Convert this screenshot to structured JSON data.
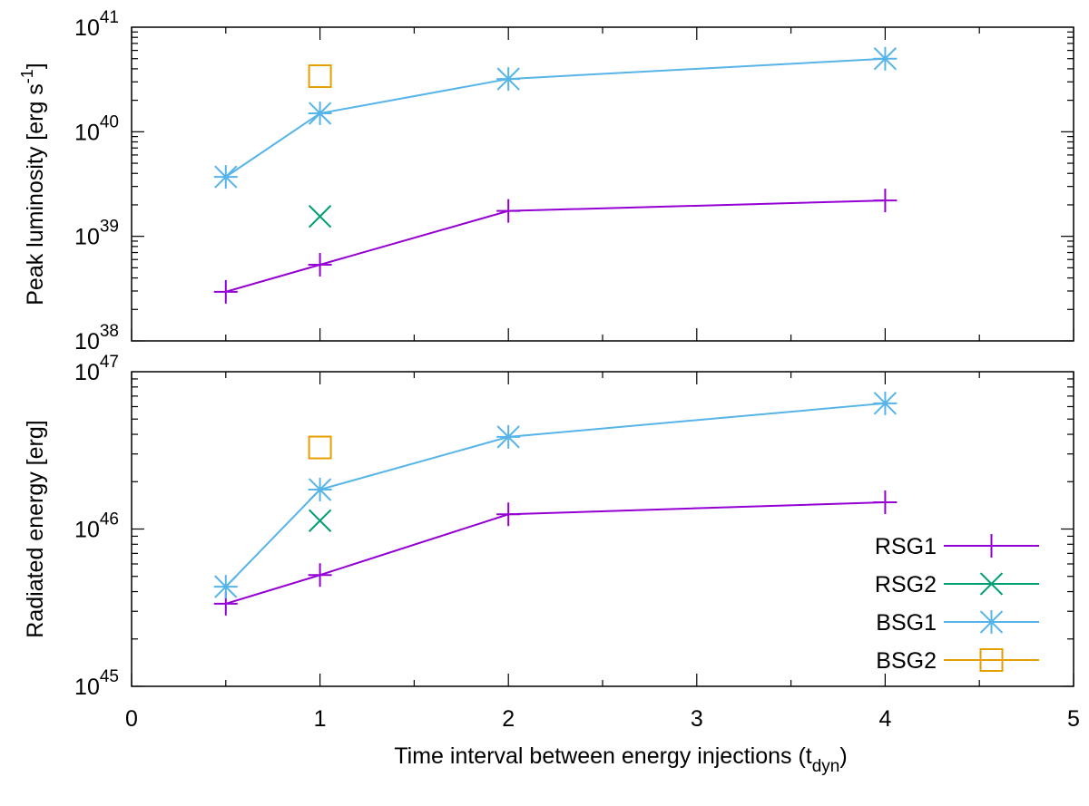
{
  "chart_data": [
    {
      "type": "line",
      "panel": "top",
      "ylabel": "Peak luminosity [erg s-1]",
      "ylabel_parts": [
        "Peak luminosity [erg s",
        "-1",
        "]"
      ],
      "yscale": "log",
      "ylim": [
        1e+38,
        1e+41
      ],
      "xlim": [
        0,
        5
      ],
      "yticks": [
        {
          "base": "10",
          "exp": "38",
          "value": 1e+38
        },
        {
          "base": "10",
          "exp": "39",
          "value": 1e+39
        },
        {
          "base": "10",
          "exp": "40",
          "value": 1e+40
        },
        {
          "base": "10",
          "exp": "41",
          "value": 1e+41
        }
      ],
      "series": [
        {
          "name": "RSG1",
          "marker": "plus",
          "color": "#9400d3",
          "connect": true,
          "points": [
            [
              0.5,
              2.95e+38
            ],
            [
              1,
              5.35e+38
            ],
            [
              2,
              1.75e+39
            ],
            [
              4,
              2.2e+39
            ]
          ]
        },
        {
          "name": "RSG2",
          "marker": "cross",
          "color": "#009e73",
          "connect": false,
          "points": [
            [
              1,
              1.55e+39
            ]
          ]
        },
        {
          "name": "BSG1",
          "marker": "star",
          "color": "#56b4e9",
          "connect": true,
          "points": [
            [
              0.5,
              3.7e+39
            ],
            [
              1,
              1.5e+40
            ],
            [
              2,
              3.2e+40
            ],
            [
              4,
              5e+40
            ]
          ]
        },
        {
          "name": "BSG2",
          "marker": "square",
          "color": "#e69f00",
          "connect": false,
          "points": [
            [
              1,
              3.4e+40
            ]
          ]
        }
      ]
    },
    {
      "type": "line",
      "panel": "bottom",
      "ylabel": "Radiated energy [erg]",
      "yscale": "log",
      "ylim": [
        1e+45,
        1e+47
      ],
      "xlim": [
        0,
        5
      ],
      "xlabel": "Time interval between energy injections (tdyn)",
      "xlabel_parts": [
        "Time interval between energy injections (t",
        "dyn",
        ")"
      ],
      "xticks": [
        "0",
        "1",
        "2",
        "3",
        "4",
        "5"
      ],
      "yticks": [
        {
          "base": "10",
          "exp": "45",
          "value": 1e+45
        },
        {
          "base": "10",
          "exp": "46",
          "value": 1e+46
        },
        {
          "base": "10",
          "exp": "47",
          "value": 1e+47
        }
      ],
      "series": [
        {
          "name": "RSG1",
          "marker": "plus",
          "color": "#9400d3",
          "connect": true,
          "points": [
            [
              0.5,
              3.35e+45
            ],
            [
              1,
              5.1e+45
            ],
            [
              2,
              1.24e+46
            ],
            [
              4,
              1.48e+46
            ]
          ]
        },
        {
          "name": "RSG2",
          "marker": "cross",
          "color": "#009e73",
          "connect": false,
          "points": [
            [
              1,
              1.13e+46
            ]
          ]
        },
        {
          "name": "BSG1",
          "marker": "star",
          "color": "#56b4e9",
          "connect": true,
          "points": [
            [
              0.5,
              4.3e+45
            ],
            [
              1,
              1.78e+46
            ],
            [
              2,
              3.85e+46
            ],
            [
              4,
              6.3e+46
            ]
          ]
        },
        {
          "name": "BSG2",
          "marker": "square",
          "color": "#e69f00",
          "connect": false,
          "points": [
            [
              1,
              3.3e+46
            ]
          ]
        }
      ],
      "legend": {
        "placement": "bottom-right",
        "entries": [
          {
            "label": "RSG1",
            "marker": "plus",
            "color": "#9400d3"
          },
          {
            "label": "RSG2",
            "marker": "cross",
            "color": "#009e73"
          },
          {
            "label": "BSG1",
            "marker": "star",
            "color": "#56b4e9"
          },
          {
            "label": "BSG2",
            "marker": "square",
            "color": "#e69f00"
          }
        ]
      }
    }
  ]
}
